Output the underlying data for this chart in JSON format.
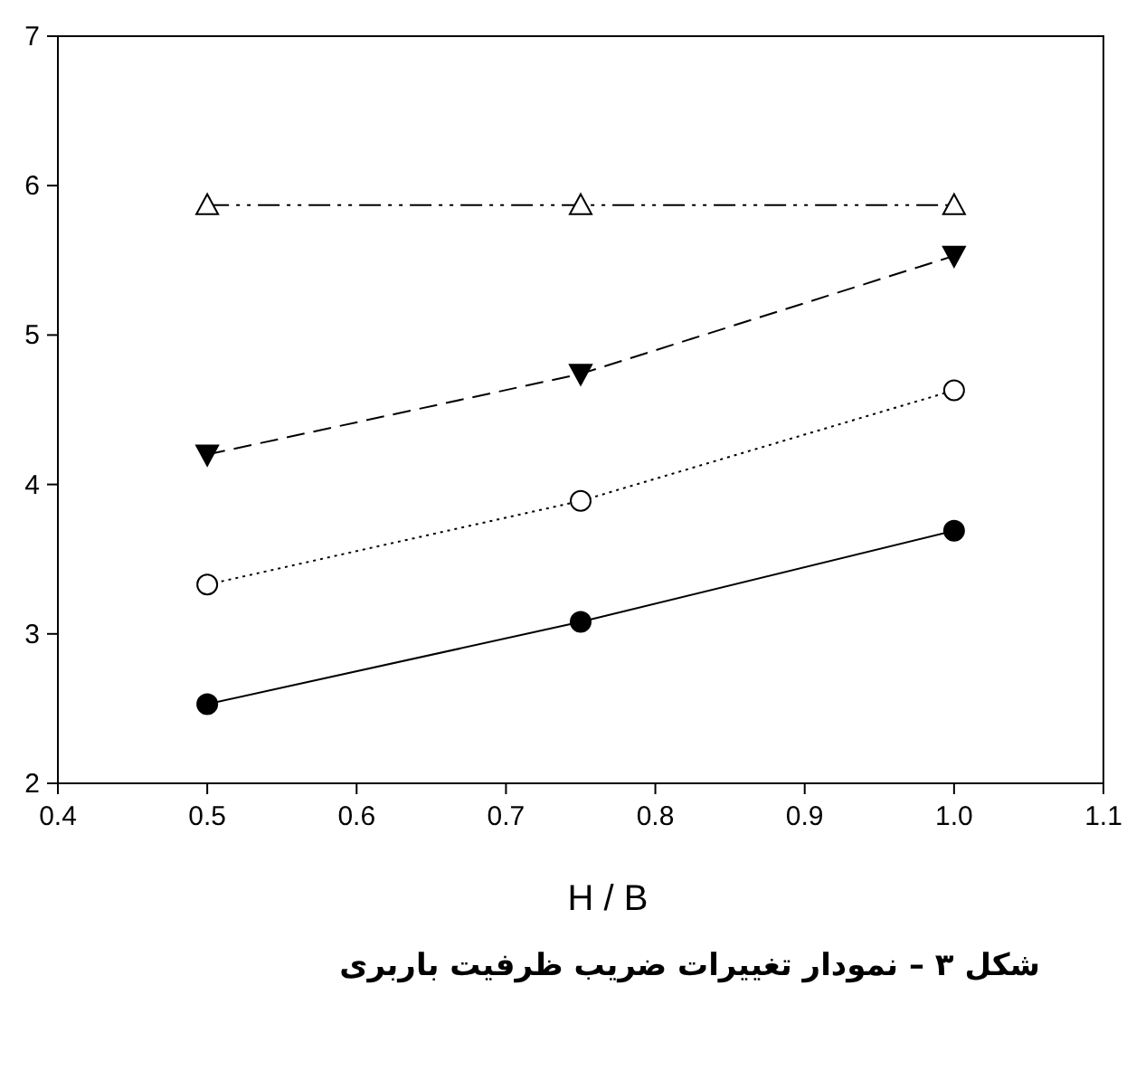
{
  "chart_data": {
    "type": "line",
    "xlabel": "H / B",
    "x": [
      0.5,
      0.75,
      1.0
    ],
    "series": [
      {
        "color": "#000000",
        "marker": "circle",
        "line_style": "solid",
        "values": [
          2.53,
          3.08,
          3.69
        ]
      },
      {
        "color": "#000000",
        "marker": "circle-open",
        "line_style": "dotted",
        "values": [
          3.33,
          3.89,
          4.63
        ]
      },
      {
        "color": "#000000",
        "marker": "triangle-down",
        "line_style": "dashed",
        "values": [
          4.2,
          4.74,
          5.53
        ]
      },
      {
        "color": "#000000",
        "marker": "triangle-open",
        "line_style": "dashdotdot",
        "values": [
          5.87,
          5.87,
          5.87
        ]
      }
    ],
    "xlim": [
      0.4,
      1.1
    ],
    "ylim": [
      2,
      7
    ],
    "xticks": [
      0.4,
      0.5,
      0.6,
      0.7,
      0.8,
      0.9,
      {
        "value": 1.0,
        "label": "1.0"
      },
      1.1
    ],
    "yticks": [
      2,
      3,
      4,
      5,
      6,
      7
    ],
    "grid": false,
    "annotations": [
      "شکل ۳ – نمودار تغییرات ضریب ظرفیت باربری"
    ]
  }
}
